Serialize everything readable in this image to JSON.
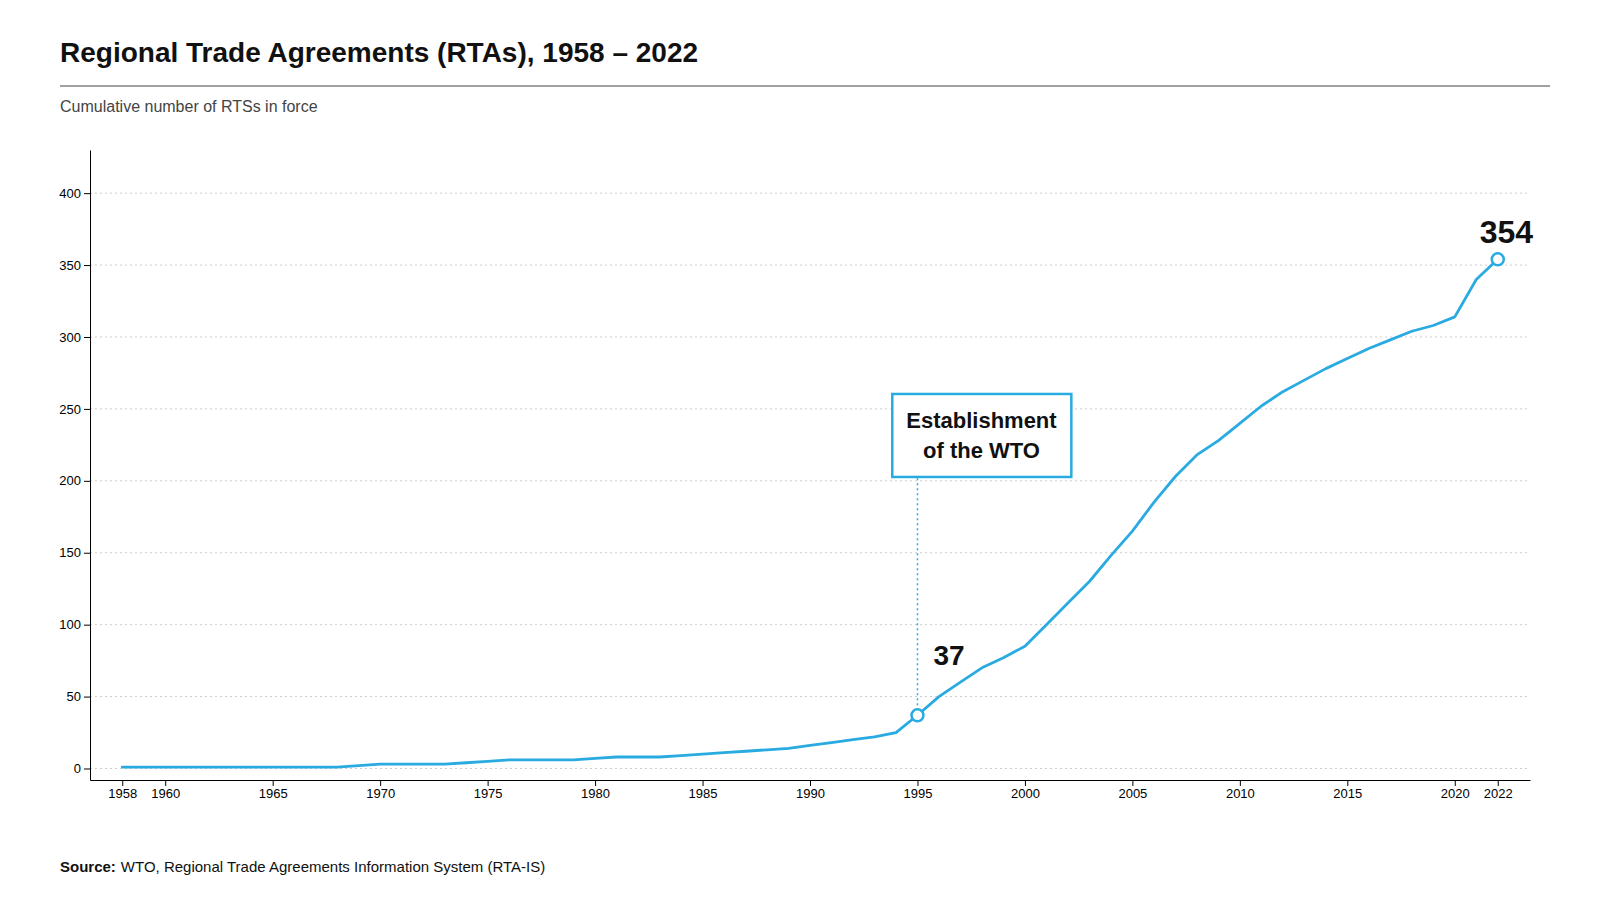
{
  "chart_data": {
    "type": "line",
    "title": "Regional Trade Agreements (RTAs), 1958 – 2022",
    "subtitle": "Cumulative number of RTSs in force",
    "source_label": "Source:",
    "source": "WTO, Regional Trade Agreements Information System (RTA-IS)",
    "color": "#29ABE2",
    "x": [
      1958,
      1959,
      1960,
      1961,
      1962,
      1963,
      1964,
      1965,
      1966,
      1967,
      1968,
      1969,
      1970,
      1971,
      1972,
      1973,
      1974,
      1975,
      1976,
      1977,
      1978,
      1979,
      1980,
      1981,
      1982,
      1983,
      1984,
      1985,
      1986,
      1987,
      1988,
      1989,
      1990,
      1991,
      1992,
      1993,
      1994,
      1995,
      1996,
      1997,
      1998,
      1999,
      2000,
      2001,
      2002,
      2003,
      2004,
      2005,
      2006,
      2007,
      2008,
      2009,
      2010,
      2011,
      2012,
      2013,
      2014,
      2015,
      2016,
      2017,
      2018,
      2019,
      2020,
      2021,
      2022
    ],
    "values": [
      1,
      1,
      1,
      1,
      1,
      1,
      1,
      1,
      1,
      1,
      1,
      2,
      3,
      3,
      3,
      3,
      4,
      5,
      6,
      6,
      6,
      6,
      7,
      8,
      8,
      8,
      9,
      10,
      11,
      12,
      13,
      14,
      16,
      18,
      20,
      22,
      25,
      37,
      50,
      60,
      70,
      77,
      85,
      100,
      115,
      130,
      148,
      165,
      185,
      203,
      218,
      228,
      240,
      252,
      262,
      270,
      278,
      285,
      292,
      298,
      304,
      308,
      314,
      340,
      354
    ],
    "point_labels": [
      {
        "x": 1995,
        "value": 37
      },
      {
        "x": 2022,
        "value": 354
      }
    ],
    "annotations": [
      {
        "text": "Establishment\nof the WTO",
        "x": 1995,
        "y": 37
      }
    ],
    "xlim": [
      1956.5,
      2023.5
    ],
    "xticks": [
      1958,
      1960,
      1965,
      1970,
      1975,
      1980,
      1985,
      1990,
      1995,
      2000,
      2005,
      2010,
      2015,
      2020,
      2022
    ],
    "ylim": [
      -8,
      430
    ],
    "yticks": [
      0,
      50,
      100,
      150,
      200,
      250,
      300,
      350,
      400
    ],
    "grid": true
  }
}
